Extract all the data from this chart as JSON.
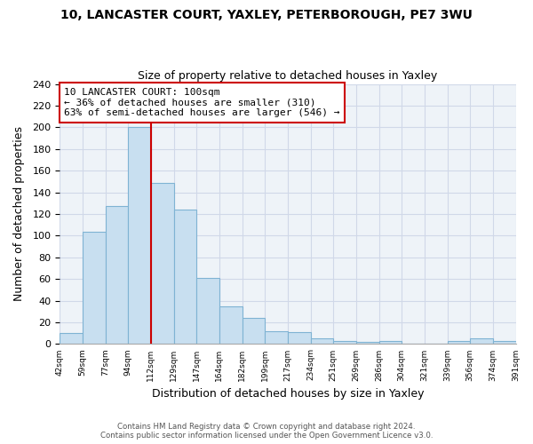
{
  "title": "10, LANCASTER COURT, YAXLEY, PETERBOROUGH, PE7 3WU",
  "subtitle": "Size of property relative to detached houses in Yaxley",
  "xlabel": "Distribution of detached houses by size in Yaxley",
  "ylabel": "Number of detached properties",
  "bar_labels": [
    "42sqm",
    "59sqm",
    "77sqm",
    "94sqm",
    "112sqm",
    "129sqm",
    "147sqm",
    "164sqm",
    "182sqm",
    "199sqm",
    "217sqm",
    "234sqm",
    "251sqm",
    "269sqm",
    "286sqm",
    "304sqm",
    "321sqm",
    "339sqm",
    "356sqm",
    "374sqm",
    "391sqm"
  ],
  "bar_values": [
    10,
    104,
    127,
    200,
    149,
    124,
    61,
    35,
    24,
    12,
    11,
    5,
    3,
    2,
    3,
    0,
    0,
    3,
    5,
    3
  ],
  "bar_color": "#c8dff0",
  "bar_edge_color": "#7fb3d3",
  "annotation_line1": "10 LANCASTER COURT: 100sqm",
  "annotation_line2": "← 36% of detached houses are smaller (310)",
  "annotation_line3": "63% of semi-detached houses are larger (546) →",
  "vline_color": "#cc0000",
  "vline_x": 4.0,
  "ylim": [
    0,
    240
  ],
  "yticks": [
    0,
    20,
    40,
    60,
    80,
    100,
    120,
    140,
    160,
    180,
    200,
    220,
    240
  ],
  "footer_line1": "Contains HM Land Registry data © Crown copyright and database right 2024.",
  "footer_line2": "Contains public sector information licensed under the Open Government Licence v3.0.",
  "bar_color_highlight": "#c8dff0",
  "grid_color": "#d0d8e8",
  "bg_color": "#eef3f8"
}
